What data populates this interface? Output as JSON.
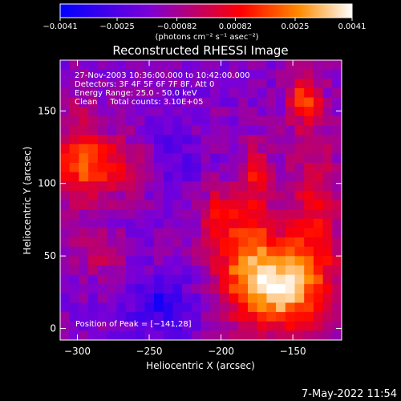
{
  "chart_data": {
    "type": "heatmap",
    "title": "Reconstructed RHESSI Image",
    "xlabel": "Heliocentric X (arcsec)",
    "ylabel": "Heliocentric Y (arcsec)",
    "xlim": [
      -312,
      -116
    ],
    "ylim": [
      -8,
      185
    ],
    "x_ticks": [
      -300,
      -250,
      -200,
      -150
    ],
    "x_tick_labels": [
      "−300",
      "−250",
      "−200",
      "−150"
    ],
    "y_ticks": [
      0,
      50,
      100,
      150
    ],
    "y_tick_labels": [
      "0",
      "50",
      "100",
      "150"
    ],
    "colorbar": {
      "range": [
        -0.0041,
        0.0041
      ],
      "ticks": [
        -0.0041,
        -0.0025,
        -0.00082,
        0.00082,
        0.0025,
        0.0041
      ],
      "tick_labels": [
        "−0.0041",
        "−0.0025",
        "−0.00082",
        "0.00082",
        "0.0025",
        "0.0041"
      ],
      "unit_label": "(photons cm⁻² s⁻¹ asec⁻²)",
      "colors": [
        "#0000ff",
        "#7a00d8",
        "#ff0000",
        "#ff8c00",
        "#ffffff"
      ]
    },
    "annotations": [
      "27-Nov-2003 10:36:00.000 to 10:42:00.000",
      "Detectors: 3F 4F 5F 6F 7F 8F, Att 0",
      "Energy Range: 25.0 - 50.0 keV",
      "Clean     Total counts: 3.10E+05"
    ],
    "peak_label": "Position of Peak = [−141,28]",
    "peak_position": [
      -141,
      28
    ]
  },
  "footer_timestamp": "7-May-2022 11:54"
}
